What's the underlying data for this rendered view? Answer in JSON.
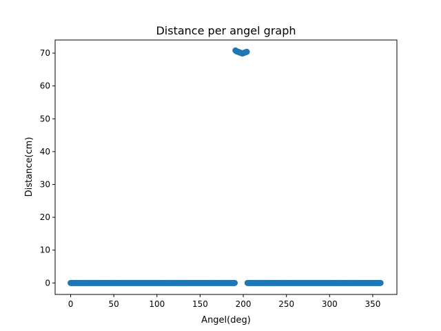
{
  "chart_data": {
    "type": "scatter",
    "title": "Distance per angel graph",
    "xlabel": "Angel(deg)",
    "ylabel": "Distance(cm)",
    "xlim": [
      -18,
      378
    ],
    "ylim": [
      -3.5,
      74
    ],
    "xticks": [
      0,
      50,
      100,
      150,
      200,
      250,
      300,
      350
    ],
    "yticks": [
      0,
      10,
      20,
      30,
      40,
      50,
      60,
      70
    ],
    "grid": false,
    "legend": "none",
    "marker_color": "#1f77b4",
    "series": [
      {
        "zero_runs": [
          [
            0,
            190
          ],
          [
            205,
            359
          ]
        ],
        "points": [
          [
            191,
            70.8
          ],
          [
            192,
            70.6
          ],
          [
            193,
            70.5
          ],
          [
            194,
            70.4
          ],
          [
            195,
            70.3
          ],
          [
            196,
            70.2
          ],
          [
            197,
            70.1
          ],
          [
            198,
            70.0
          ],
          [
            199,
            69.9
          ],
          [
            200,
            70.0
          ],
          [
            201,
            70.1
          ],
          [
            202,
            70.2
          ],
          [
            203,
            70.3
          ],
          [
            204,
            70.4
          ]
        ]
      }
    ]
  }
}
